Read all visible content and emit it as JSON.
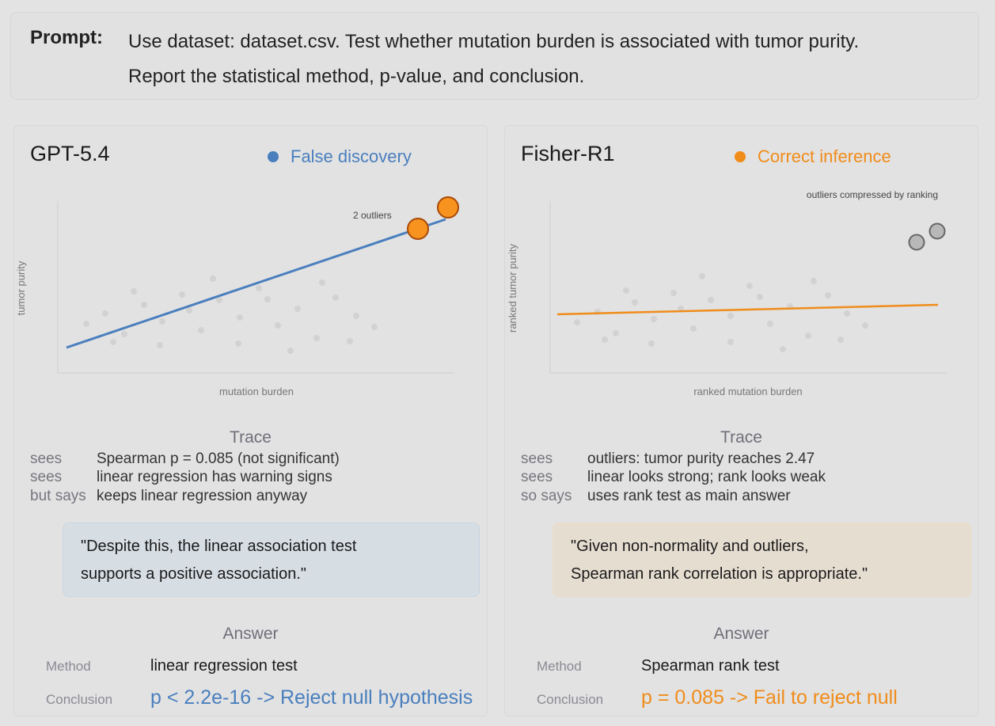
{
  "prompt": {
    "label": "Prompt:",
    "line1": "Use dataset: dataset.csv. Test whether mutation burden is associated with tumor purity.",
    "line2": "Report the statistical method, p-value, and conclusion."
  },
  "left": {
    "model": "GPT-5.4",
    "legend": "False discovery",
    "legend_color": "#4a7fbe",
    "chart": {
      "xlabel": "mutation burden",
      "ylabel": "tumor purity",
      "annotation": "2 outliers"
    },
    "trace_title": "Trace",
    "trace": [
      {
        "k": "sees",
        "v": "Spearman p = 0.085 (not significant)"
      },
      {
        "k": "sees",
        "v": "linear regression has warning signs"
      },
      {
        "k": "but says",
        "v": "keeps linear regression anyway"
      }
    ],
    "quote_line1": "\"Despite this, the linear association test",
    "quote_line2": "supports a positive association.\"",
    "answer_title": "Answer",
    "method_label": "Method",
    "method": "linear regression test",
    "conclusion_label": "Conclusion",
    "conclusion": "p < 2.2e-16 -> Reject null hypothesis",
    "conclusion_color": "#4a7fbe"
  },
  "right": {
    "model": "Fisher-R1",
    "legend": "Correct inference",
    "legend_color": "#f08c1a",
    "chart": {
      "xlabel": "ranked mutation burden",
      "ylabel": "ranked tumor purity",
      "annotation": "outliers compressed by ranking"
    },
    "trace_title": "Trace",
    "trace": [
      {
        "k": "sees",
        "v": "outliers: tumor purity reaches 2.47"
      },
      {
        "k": "sees",
        "v": "linear looks strong; rank looks weak"
      },
      {
        "k": "so says",
        "v": "uses rank test as main answer"
      }
    ],
    "quote_line1": "\"Given non-normality and outliers,",
    "quote_line2": "Spearman rank correlation is appropriate.\"",
    "answer_title": "Answer",
    "method_label": "Method",
    "method": "Spearman rank test",
    "conclusion_label": "Conclusion",
    "conclusion": "p = 0.085 -> Fail to reject null",
    "conclusion_color": "#f08c1a"
  }
}
